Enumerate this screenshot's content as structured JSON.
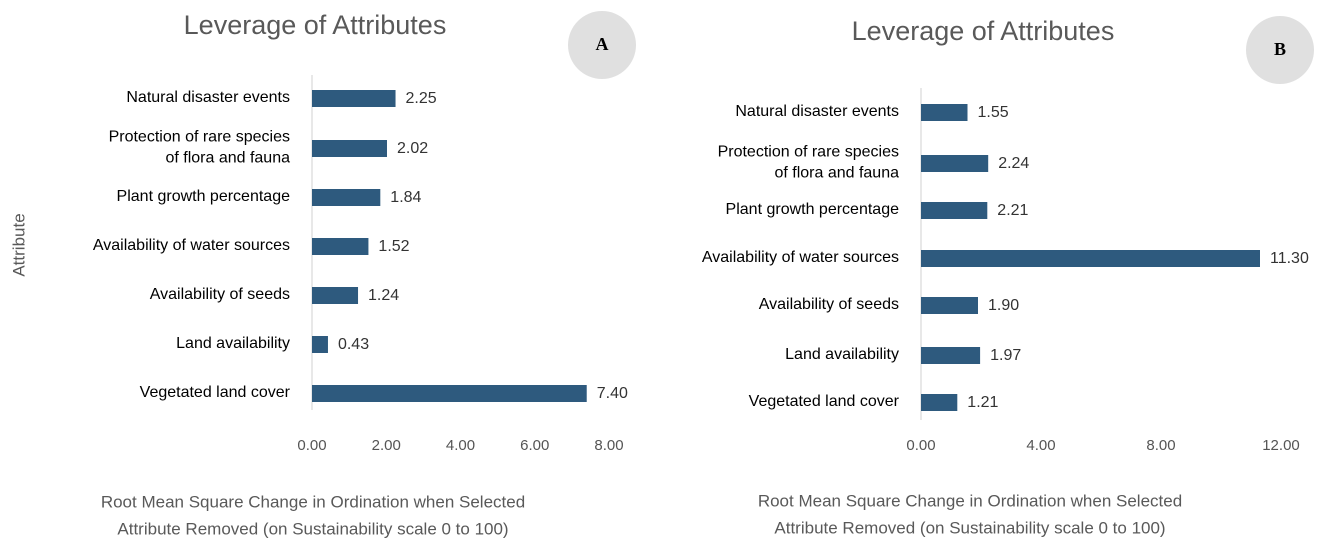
{
  "chart_data": [
    {
      "type": "bar",
      "orientation": "horizontal",
      "badge": "A",
      "title": "Leverage of Attributes",
      "y_label": "Attribute",
      "x_label": "Root Mean Square Change in Ordination when Selected\nAttribute Removed (on Sustainability scale 0 to 100)",
      "categories": [
        "Natural disaster events",
        "Protection of rare species\nof flora and fauna",
        "Plant growth percentage",
        "Availability of water sources",
        "Availability of seeds",
        "Land availability",
        "Vegetated land cover"
      ],
      "values": [
        2.25,
        2.02,
        1.84,
        1.52,
        1.24,
        0.43,
        7.4
      ],
      "value_labels": [
        "2.25",
        "2.02",
        "1.84",
        "1.52",
        "1.24",
        "0.43",
        "7.40"
      ],
      "color": "#2e5a7e",
      "xlim": [
        0,
        8
      ],
      "xticks": [
        {
          "value": 0,
          "label": "0.00"
        },
        {
          "value": 2,
          "label": "2.00"
        },
        {
          "value": 4,
          "label": "4.00"
        },
        {
          "value": 6,
          "label": "6.00"
        },
        {
          "value": 8,
          "label": "8.00"
        }
      ]
    },
    {
      "type": "bar",
      "orientation": "horizontal",
      "badge": "B",
      "title": "Leverage of Attributes",
      "x_label": "Root Mean Square Change in Ordination when Selected\nAttribute Removed (on Sustainability scale 0 to 100)",
      "categories": [
        "Natural disaster events",
        "Protection of rare species\nof flora and fauna",
        "Plant growth percentage",
        "Availability of water sources",
        "Availability of seeds",
        "Land availability",
        "Vegetated land cover"
      ],
      "values": [
        1.55,
        2.24,
        2.21,
        11.3,
        1.9,
        1.97,
        1.21
      ],
      "value_labels": [
        "1.55",
        "2.24",
        "2.21",
        "11.30",
        "1.90",
        "1.97",
        "1.21"
      ],
      "color": "#2e5a7e",
      "xlim": [
        0,
        12
      ],
      "xticks": [
        {
          "value": 0,
          "label": "0.00"
        },
        {
          "value": 4,
          "label": "4.00"
        },
        {
          "value": 8,
          "label": "8.00"
        },
        {
          "value": 12,
          "label": "12.00"
        }
      ]
    }
  ]
}
